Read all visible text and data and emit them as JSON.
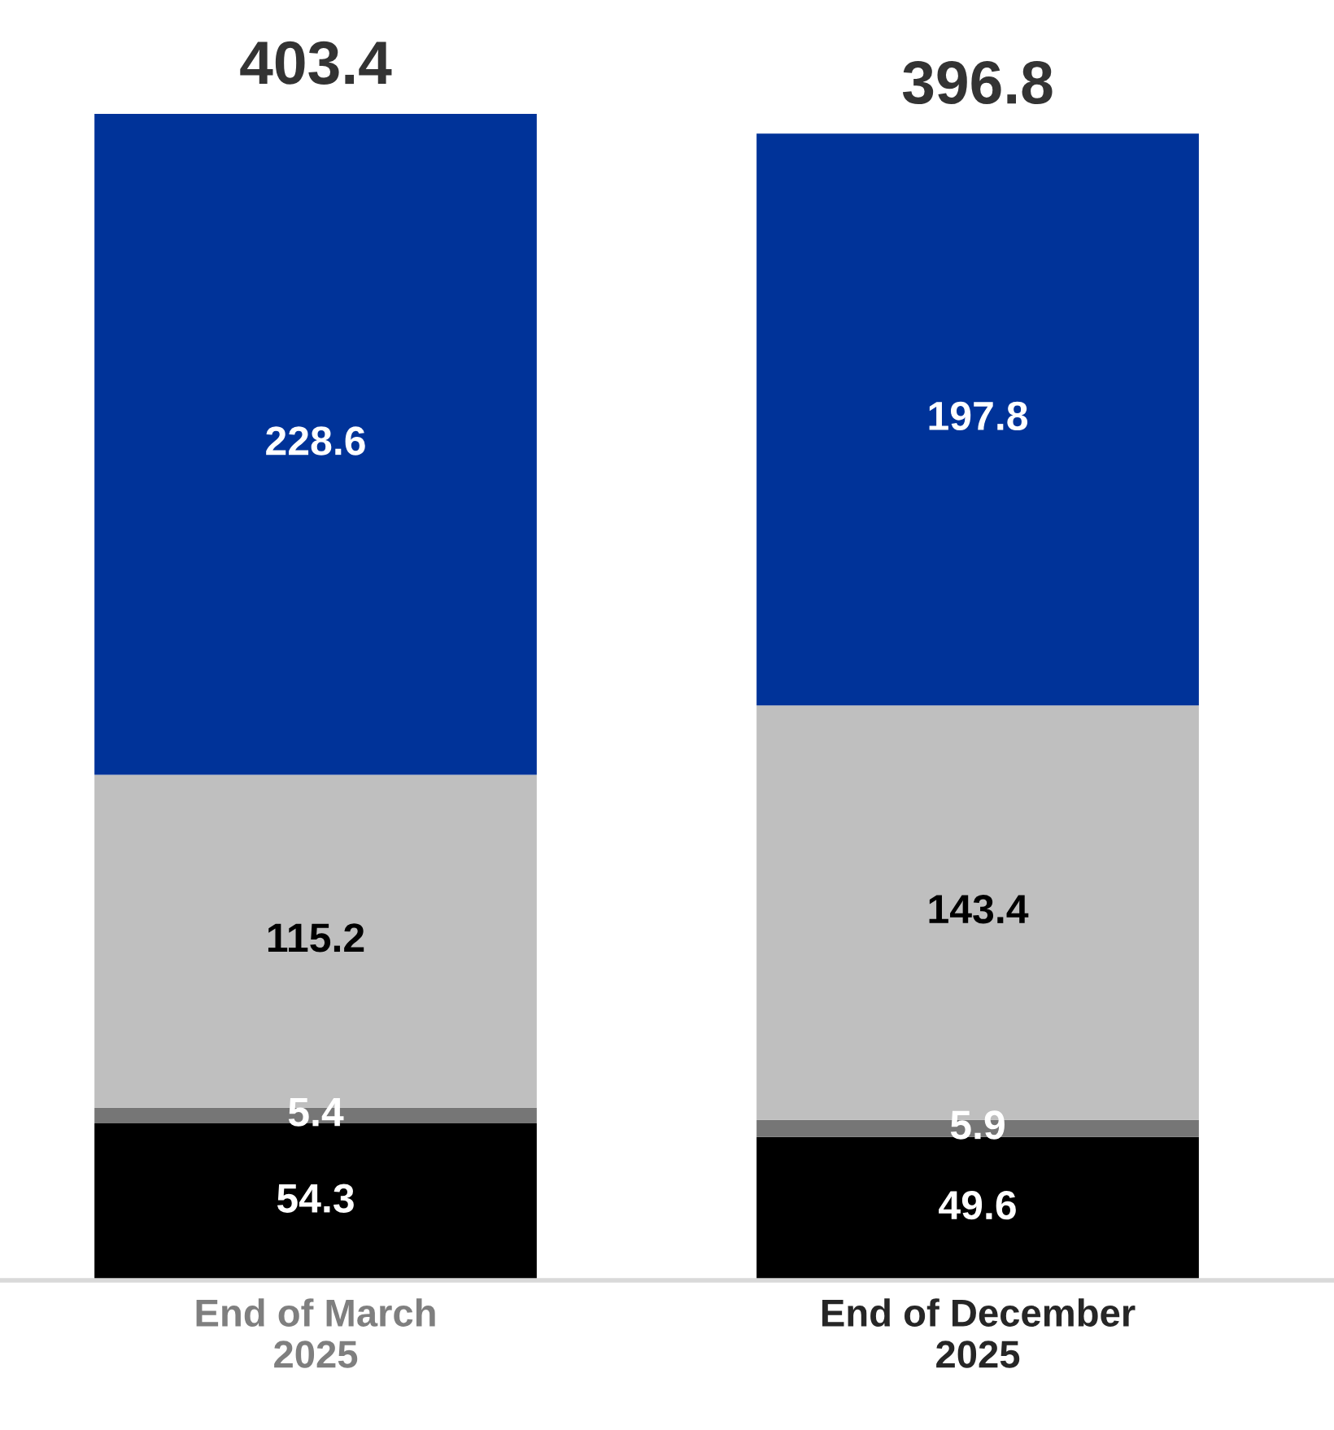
{
  "chart_data": {
    "type": "bar",
    "stacked": true,
    "categories": [
      "End of March\n2025",
      "End of December\n2025"
    ],
    "series": [
      {
        "color": "#000000",
        "values": [
          54.3,
          49.6
        ]
      },
      {
        "color": "#767676",
        "values": [
          5.4,
          5.9
        ]
      },
      {
        "color": "#bfbfbf",
        "values": [
          115.2,
          143.4
        ]
      },
      {
        "color": "#003399",
        "values": [
          228.6,
          197.8
        ]
      }
    ],
    "data_labels": true,
    "totals": [
      "403.4",
      "396.8"
    ],
    "legend": false,
    "grid": false
  }
}
